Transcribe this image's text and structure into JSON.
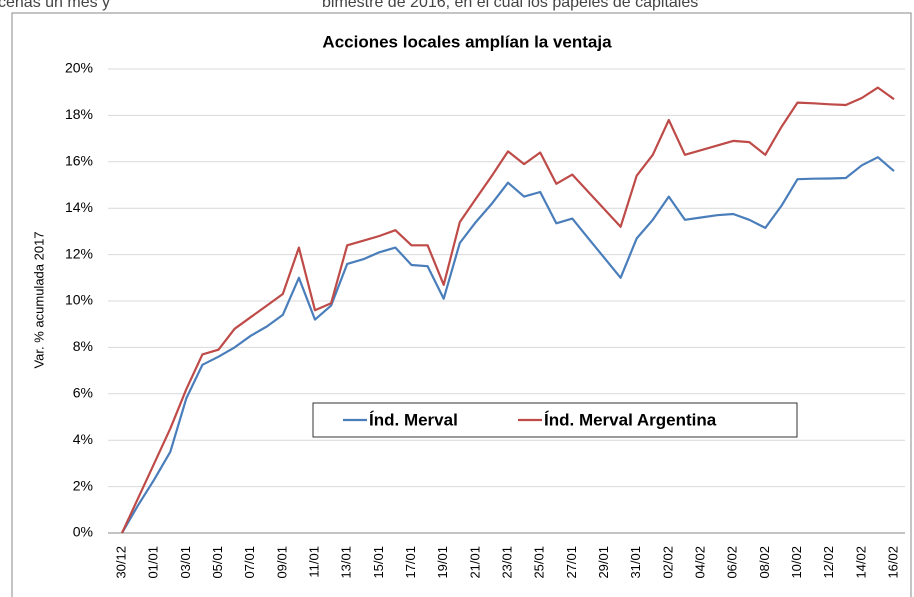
{
  "background_text": [
    "cenas un mes y",
    "bimestre de 2016, en el cual los papeles de capitales"
  ],
  "chart_data": {
    "type": "line",
    "title": "Acciones locales amplían la ventaja",
    "y_label": "Var. % acumulada 2017",
    "categories": [
      "30/12",
      null,
      "01/01",
      null,
      "03/01",
      null,
      "05/01",
      null,
      "07/01",
      null,
      "09/01",
      null,
      "11/01",
      null,
      "13/01",
      null,
      "15/01",
      null,
      "17/01",
      null,
      "19/01",
      null,
      "21/01",
      null,
      "23/01",
      null,
      "25/01",
      null,
      "27/01",
      null,
      "29/01",
      null,
      "31/01",
      null,
      "02/02",
      null,
      "04/02",
      null,
      "06/02",
      null,
      "08/02",
      null,
      "10/02",
      null,
      "12/02",
      null,
      "14/02",
      null,
      "16/02"
    ],
    "series": [
      {
        "name": "Índ. Merval",
        "color": "#4a7ebb",
        "values": [
          0,
          1.2,
          2.3,
          3.5,
          5.8,
          7.25,
          7.6,
          8.0,
          8.5,
          8.9,
          9.4,
          11.0,
          9.2,
          9.8,
          11.6,
          11.8,
          12.1,
          12.3,
          11.55,
          11.5,
          10.1,
          12.5,
          13.4,
          14.2,
          15.1,
          14.5,
          14.7,
          13.35,
          13.55,
          12.7,
          11.85,
          11.0,
          12.7,
          13.5,
          14.5,
          13.5,
          13.6,
          13.7,
          13.75,
          13.5,
          13.15,
          14.1,
          15.25,
          15.27,
          15.28,
          15.3,
          15.85,
          16.2,
          15.6
        ]
      },
      {
        "name": "Índ. Merval Argentina",
        "color": "#be4b48",
        "values": [
          0,
          1.5,
          3.0,
          4.5,
          6.2,
          7.7,
          7.9,
          8.8,
          9.3,
          9.8,
          10.3,
          12.3,
          9.6,
          9.9,
          12.4,
          12.6,
          12.8,
          13.05,
          12.4,
          12.4,
          10.7,
          13.4,
          14.4,
          15.4,
          16.45,
          15.9,
          16.4,
          15.05,
          15.45,
          14.7,
          13.95,
          13.2,
          15.4,
          16.3,
          17.8,
          16.3,
          16.5,
          16.7,
          16.9,
          16.85,
          16.3,
          17.5,
          18.55,
          18.52,
          18.48,
          18.45,
          18.75,
          19.2,
          18.7
        ]
      }
    ],
    "ylim": [
      0,
      20
    ],
    "yticks": [
      {
        "value": 0,
        "label": "0%"
      },
      {
        "value": 2,
        "label": "2%"
      },
      {
        "value": 4,
        "label": "4%"
      },
      {
        "value": 6,
        "label": "6%"
      },
      {
        "value": 8,
        "label": "8%"
      },
      {
        "value": 10,
        "label": "10%"
      },
      {
        "value": 12,
        "label": "12%"
      },
      {
        "value": 14,
        "label": "14%"
      },
      {
        "value": 16,
        "label": "16%"
      },
      {
        "value": 18,
        "label": "18%"
      },
      {
        "value": 20,
        "label": "20%"
      }
    ],
    "grid": true,
    "legend": "center"
  }
}
